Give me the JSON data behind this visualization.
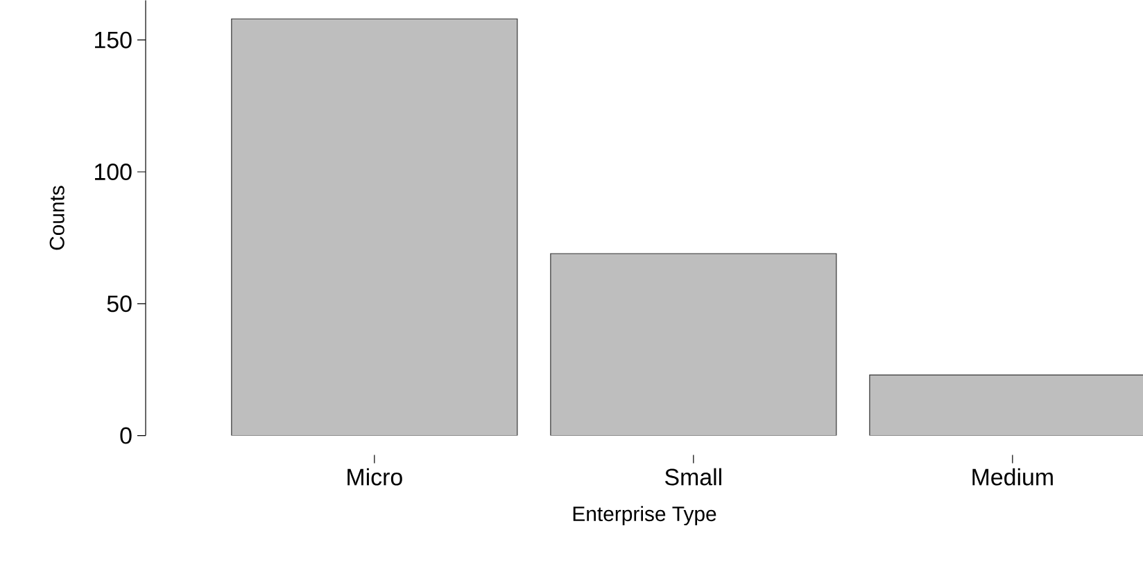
{
  "chart_data": {
    "type": "bar",
    "xlabel": "Enterprise Type",
    "ylabel": "Counts",
    "categories": [
      "Micro",
      "Small",
      "Medium"
    ],
    "values": [
      158,
      69,
      23
    ],
    "color": "#bebebe",
    "ylim": [
      0,
      165
    ],
    "yticks": [
      0,
      50,
      100,
      150
    ]
  }
}
